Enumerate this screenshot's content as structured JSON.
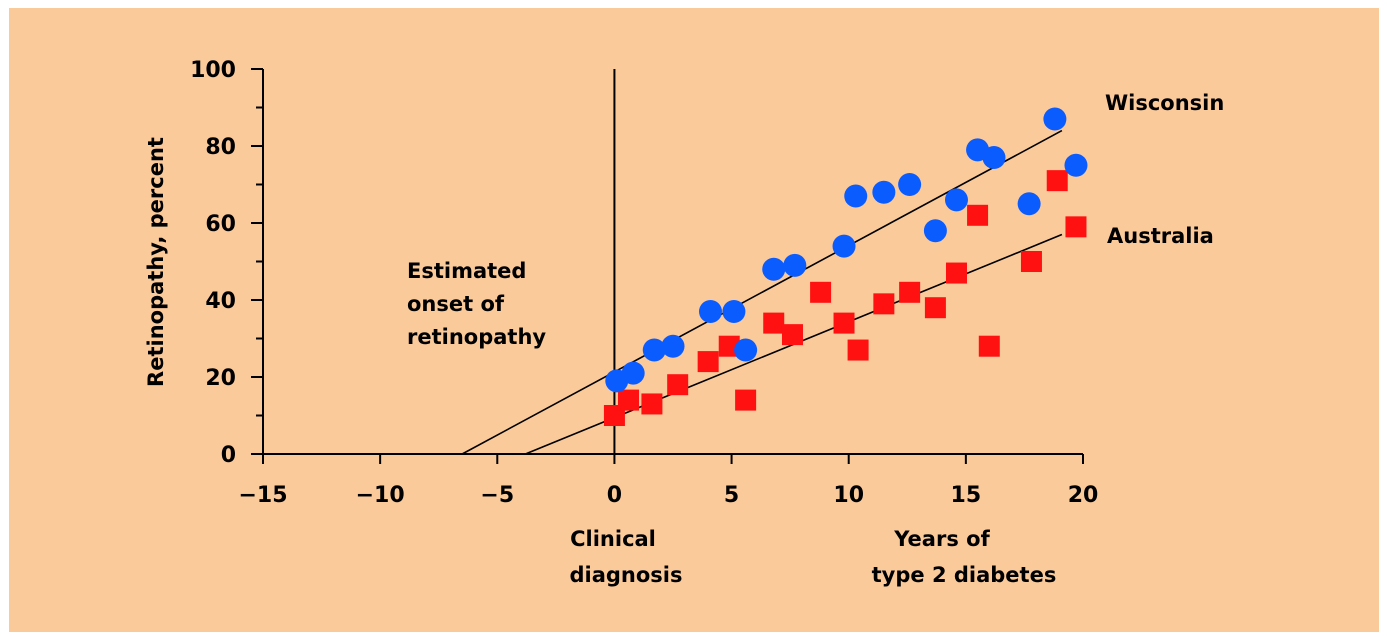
{
  "colors": {
    "background": "#fbca9b",
    "wisconsin": "#0b5cff",
    "australia": "#ff1111",
    "axis": "#000000"
  },
  "chart_data": {
    "type": "scatter",
    "title": "",
    "ylabel": "Retinopathy, percent",
    "xlabel_lines": [
      "Years of",
      "type 2 diabetes"
    ],
    "xlim": [
      -15,
      20
    ],
    "ylim": [
      0,
      100
    ],
    "x_ticks": [
      -15,
      -10,
      -5,
      0,
      5,
      10,
      15,
      20
    ],
    "y_ticks": [
      0,
      20,
      40,
      60,
      80,
      100
    ],
    "y_minor_ticks": [
      10,
      30,
      50,
      70,
      90
    ],
    "grid": false,
    "vertical_marker": {
      "x": 0,
      "label_lines": [
        "Clinical",
        "diagnosis"
      ]
    },
    "annotation_lines": [
      "Estimated",
      "onset of",
      "retinopathy"
    ],
    "series": [
      {
        "name": "Wisconsin",
        "marker": "circle",
        "color": "#0b5cff",
        "x": [
          0.1,
          0.8,
          1.7,
          2.5,
          4.1,
          5.1,
          5.6,
          6.8,
          7.7,
          9.8,
          10.3,
          11.5,
          12.6,
          13.7,
          14.6,
          15.5,
          16.2,
          17.7,
          18.8,
          19.7
        ],
        "y": [
          19,
          21,
          27,
          28,
          37,
          37,
          27,
          48,
          49,
          54,
          67,
          68,
          70,
          58,
          66,
          79,
          77,
          65,
          87,
          75
        ],
        "trend": {
          "x": [
            -6.5,
            19.1
          ],
          "y": [
            0,
            84
          ]
        }
      },
      {
        "name": "Australia",
        "marker": "square",
        "color": "#ff1111",
        "x": [
          0.0,
          0.6,
          1.6,
          2.7,
          4.0,
          4.9,
          5.6,
          6.8,
          7.6,
          8.8,
          9.8,
          10.4,
          11.5,
          12.6,
          13.7,
          14.6,
          15.5,
          16.0,
          17.8,
          18.9,
          19.7
        ],
        "y": [
          10,
          14,
          13,
          18,
          24,
          28,
          14,
          34,
          31,
          42,
          34,
          27,
          39,
          42,
          38,
          47,
          62,
          28,
          50,
          71,
          59
        ],
        "trend": {
          "x": [
            -3.8,
            19.1
          ],
          "y": [
            0,
            57
          ]
        }
      }
    ]
  }
}
